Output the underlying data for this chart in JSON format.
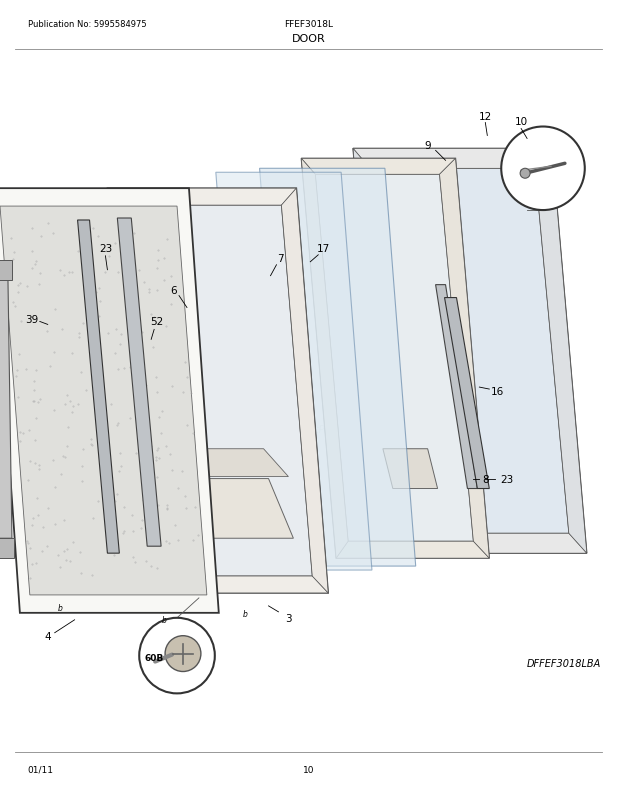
{
  "title": "DOOR",
  "publication": "Publication No: 5995584975",
  "model": "FFEF3018L",
  "diagram_id": "DFFEF3018LBA",
  "date": "01/11",
  "page": "10",
  "bg_color": "#ffffff"
}
